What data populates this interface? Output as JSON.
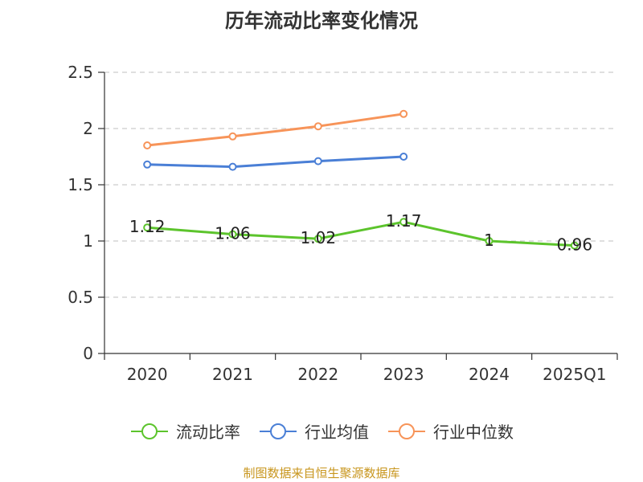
{
  "chart_data": {
    "type": "line",
    "title": "历年流动比率变化情况",
    "categories": [
      "2020",
      "2021",
      "2022",
      "2023",
      "2024",
      "2025Q1"
    ],
    "yticks": [
      "0",
      "0.5",
      "1",
      "1.5",
      "2",
      "2.5"
    ],
    "ylim": [
      0,
      2.5
    ],
    "grid": true,
    "legend_position": "bottom",
    "series": [
      {
        "name": "流动比率",
        "color": "#5cc42c",
        "values": [
          1.12,
          1.06,
          1.02,
          1.17,
          1.0,
          0.96
        ],
        "labels": [
          "1.12",
          "1.06",
          "1.02",
          "1.17",
          "1",
          "0.96"
        ]
      },
      {
        "name": "行业均值",
        "color": "#4a7fd6",
        "values": [
          1.68,
          1.66,
          1.71,
          1.75,
          null,
          null
        ]
      },
      {
        "name": "行业中位数",
        "color": "#f79459",
        "values": [
          1.85,
          1.93,
          2.02,
          2.13,
          null,
          null
        ]
      }
    ]
  },
  "footer": {
    "source": "制图数据来自恒生聚源数据库"
  }
}
